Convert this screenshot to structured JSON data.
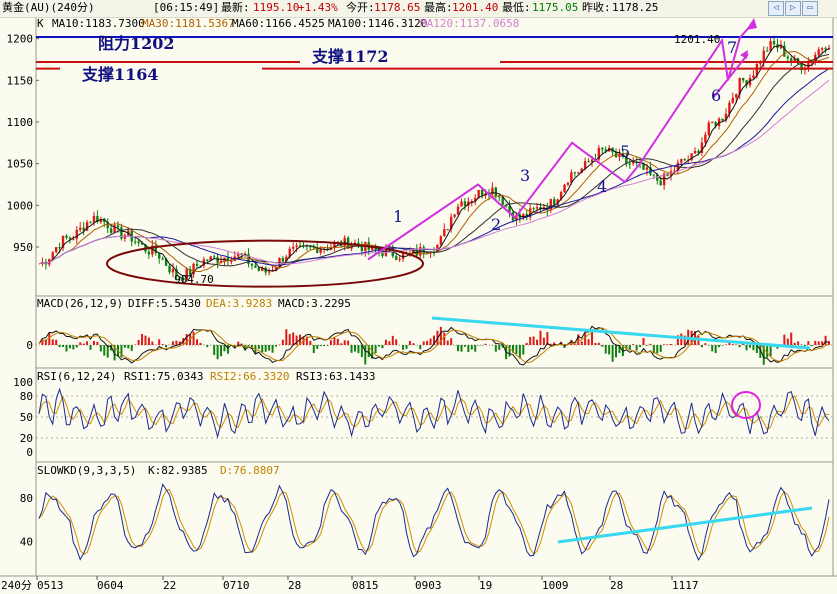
{
  "header": {
    "symbol": "黄金(AU)(240分)",
    "time": "[06:15:49]",
    "latest_label": "最新:",
    "latest_value": "1195.10",
    "change_pct": "+1.43%",
    "open_label": "今开:",
    "open_value": "1178.65",
    "high_label": "最高:",
    "high_value": "1201.40",
    "low_label": "最低:",
    "low_value": "1175.05",
    "prev_close_label": "昨收:",
    "prev_close_value": "1178.25"
  },
  "nav": {
    "left": "◁",
    "right": "▷",
    "expand": "▭"
  },
  "colors": {
    "background": "#fbfbef",
    "resistance": "#1010c0",
    "support": "#c81010",
    "ellipse": "#7a0a0a",
    "wave": "#d030e0",
    "trendline": "#38d8f0",
    "up_bar": "#e01818",
    "down_bar": "#108010"
  },
  "main_panel": {
    "indicator_labels": [
      {
        "text": "K",
        "color": "#000000"
      },
      {
        "text": "MA10:1183.7300",
        "color": "#000000"
      },
      {
        "text": "MA30:1181.5367",
        "color": "#b06000"
      },
      {
        "text": "MA60:1166.4525",
        "color": "#101010"
      },
      {
        "text": "MA100:1146.3120",
        "color": "#101010"
      },
      {
        "text": "MA120:1137.0658",
        "color": "#d080d0"
      }
    ],
    "annotations": {
      "resistance": "阻力1202",
      "support_1172": "支撑1172",
      "support_1164": "支撑1164",
      "high_label": "1201.40",
      "low_label": "904.70"
    },
    "wave_labels": [
      "1",
      "2",
      "3",
      "4",
      "5",
      "6",
      "7"
    ]
  },
  "macd_panel": {
    "labels": [
      {
        "text": "MACD(26,12,9)",
        "color": "#000000"
      },
      {
        "text": "DIFF:5.5430",
        "color": "#000000"
      },
      {
        "text": "DEA:3.9283",
        "color": "#c08000"
      },
      {
        "text": "MACD:3.2295",
        "color": "#000000"
      }
    ]
  },
  "rsi_panel": {
    "labels": [
      {
        "text": "RSI(6,12,24)",
        "color": "#000000"
      },
      {
        "text": "RSI1:75.0343",
        "color": "#000000"
      },
      {
        "text": "RSI2:66.3320",
        "color": "#c08000"
      },
      {
        "text": "RSI3:63.1433",
        "color": "#000000"
      }
    ]
  },
  "kd_panel": {
    "labels": [
      {
        "text": "SLOWKD(9,3,3,5)",
        "color": "#000000"
      },
      {
        "text": "K:82.9385",
        "color": "#000000"
      },
      {
        "text": "D:76.8807",
        "color": "#c08000"
      }
    ]
  },
  "x_axis": {
    "unit": "240分",
    "ticks": [
      "0513",
      "0604",
      "22",
      "0710",
      "28",
      "0815",
      "0903",
      "19",
      "1009",
      "28",
      "1117"
    ]
  },
  "chart_data": {
    "type": "line",
    "title": "",
    "price_axis": {
      "ticks": [
        1200,
        1150,
        1100,
        1050,
        1000,
        950
      ],
      "ylim": [
        896,
        1220
      ]
    },
    "levels": [
      {
        "label": "阻力1202",
        "value": 1202,
        "kind": "resistance"
      },
      {
        "label": "支撑1172",
        "value": 1172,
        "kind": "support"
      },
      {
        "label": "支撑1164",
        "value": 1164,
        "kind": "support"
      }
    ],
    "price_anchors": [
      {
        "x": "0513",
        "y": 930
      },
      {
        "x": "0520",
        "y": 960
      },
      {
        "x": "0527",
        "y": 985
      },
      {
        "x": "0604",
        "y": 965
      },
      {
        "x": "0612",
        "y": 945
      },
      {
        "x": "0622",
        "y": 915
      },
      {
        "x": "0628",
        "y": 935
      },
      {
        "x": "0705",
        "y": 940
      },
      {
        "x": "0710",
        "y": 920
      },
      {
        "x": "0717",
        "y": 945
      },
      {
        "x": "0728",
        "y": 950
      },
      {
        "x": "0805",
        "y": 955
      },
      {
        "x": "0815",
        "y": 945
      },
      {
        "x": "0822",
        "y": 940
      },
      {
        "x": "0903",
        "y": 950
      },
      {
        "x": "0912",
        "y": 1005
      },
      {
        "x": "0919",
        "y": 1020
      },
      {
        "x": "0926",
        "y": 985
      },
      {
        "x": "1001",
        "y": 1000
      },
      {
        "x": "1009",
        "y": 1040
      },
      {
        "x": "1015",
        "y": 1065
      },
      {
        "x": "1020",
        "y": 1050
      },
      {
        "x": "1028",
        "y": 1030
      },
      {
        "x": "1103",
        "y": 1055
      },
      {
        "x": "1109",
        "y": 1100
      },
      {
        "x": "1117",
        "y": 1150
      },
      {
        "x": "1122",
        "y": 1192
      },
      {
        "x": "1124",
        "y": 1168
      },
      {
        "x": "1126",
        "y": 1195
      }
    ],
    "wave_points": [
      {
        "label": "1",
        "y": 935
      },
      {
        "label": "peak1",
        "y": 1025
      },
      {
        "label": "2",
        "y": 985
      },
      {
        "label": "3",
        "y": 1075
      },
      {
        "label": "4",
        "y": 1028
      },
      {
        "label": "5",
        "y": 1050
      },
      {
        "label": "peak5",
        "y": 1198
      },
      {
        "label": "6",
        "y": 1150
      },
      {
        "label": "7",
        "y": 1201.4
      }
    ],
    "marked_high": 1201.4,
    "marked_low": 904.7,
    "macd": {
      "ylim": [
        -12,
        20
      ],
      "diff": 5.543,
      "dea": 3.9283,
      "macd": 3.2295
    },
    "rsi": {
      "ylim": [
        0,
        100
      ],
      "ticks": [
        100,
        80,
        50,
        20,
        0
      ],
      "rsi1": 75.0343,
      "rsi2": 66.332,
      "rsi3": 63.1433
    },
    "slowkd": {
      "ylim": [
        10,
        100
      ],
      "ticks": [
        80,
        40
      ],
      "k": 82.9385,
      "d": 76.8807
    }
  }
}
